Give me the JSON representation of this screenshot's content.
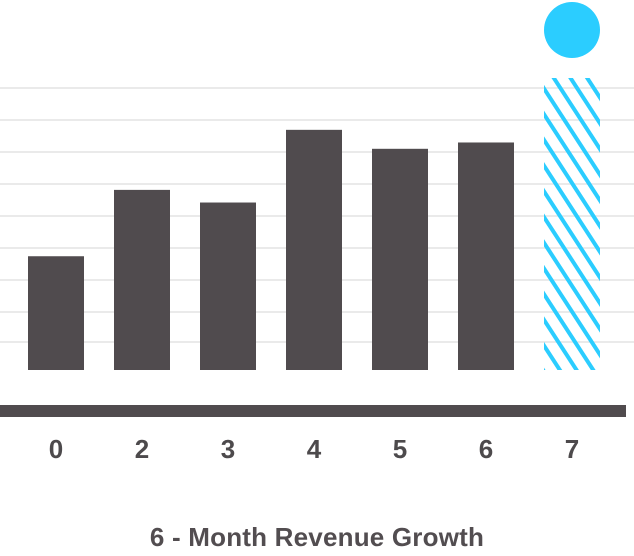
{
  "chart_data": {
    "type": "bar",
    "title": "6 - Month Revenue Growth",
    "xlabel": "",
    "ylabel": "",
    "categories": [
      "0",
      "2",
      "3",
      "4",
      "5",
      "6",
      "7"
    ],
    "series": [
      {
        "values": [
          36,
          57,
          53,
          76,
          70,
          72,
          92
        ]
      }
    ],
    "projected_category": "7",
    "ylim": [
      0,
      100
    ],
    "grid": true,
    "legend": "none",
    "colors": {
      "bar": "#504b4e",
      "projected": "#2bcdff",
      "axis": "#504b4e",
      "grid": "#e4e4e4",
      "tick_label": "#4d4a4c",
      "title": "#524d50"
    }
  }
}
